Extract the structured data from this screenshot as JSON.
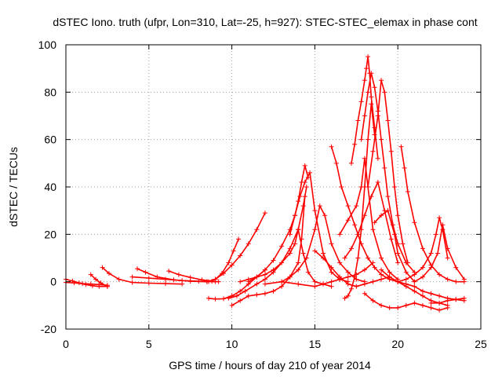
{
  "chart_data": {
    "type": "scatter",
    "title": "dSTEC Iono. truth (ufpr, Lon=310, Lat=-25, h=927): STEC-STEC_elemax in phase cont",
    "xlabel": "GPS time / hours of day 210 of year 2014",
    "ylabel": "dSTEC  / TECUs",
    "xlim": [
      0,
      25
    ],
    "ylim": [
      -20,
      100
    ],
    "xticks": [
      0,
      5,
      10,
      15,
      20,
      25
    ],
    "yticks": [
      -20,
      0,
      20,
      40,
      60,
      80,
      100
    ],
    "grid": true,
    "marker": "+",
    "color": "#ff0000",
    "series": [
      {
        "x": [
          0.0,
          0.4,
          0.8,
          1.2,
          1.6,
          2.0,
          2.5
        ],
        "y": [
          1.0,
          0.3,
          -0.5,
          -1.2,
          -1.7,
          -2.0,
          -2.0
        ]
      },
      {
        "x": [
          0.0,
          0.5,
          1.0,
          1.5,
          2.0,
          2.5
        ],
        "y": [
          -0.3,
          -0.5,
          -0.8,
          -1.0,
          -1.2,
          -1.5
        ]
      },
      {
        "x": [
          1.5,
          1.8,
          2.1,
          2.5
        ],
        "y": [
          3.0,
          1.0,
          -0.5,
          -2.0
        ]
      },
      {
        "x": [
          2.2,
          2.6,
          3.2,
          4.0,
          5.0,
          6.0,
          7.0
        ],
        "y": [
          6.0,
          3.5,
          1.0,
          -0.3,
          -0.6,
          -0.8,
          -1.0
        ]
      },
      {
        "x": [
          4.3,
          4.8,
          5.5,
          6.5,
          7.5,
          8.5
        ],
        "y": [
          5.5,
          4.0,
          2.0,
          0.8,
          0.2,
          0.0
        ]
      },
      {
        "x": [
          4.0,
          5.0,
          6.0,
          7.0,
          8.0,
          9.0
        ],
        "y": [
          2.0,
          1.5,
          1.0,
          0.5,
          0.2,
          0.0
        ]
      },
      {
        "x": [
          6.2,
          6.8,
          7.5,
          8.2,
          8.8,
          9.2
        ],
        "y": [
          4.5,
          3.0,
          1.8,
          0.8,
          0.2,
          0.0
        ]
      },
      {
        "x": [
          8.6,
          9.0,
          9.4,
          9.8,
          10.1,
          10.4
        ],
        "y": [
          0.0,
          1.0,
          3.5,
          8.0,
          13.0,
          18.0
        ]
      },
      {
        "x": [
          8.5,
          9.0,
          9.5,
          10.0,
          10.5,
          11.0,
          11.5,
          12.0
        ],
        "y": [
          0.0,
          1.0,
          3.5,
          7.0,
          11.0,
          16.0,
          22.0,
          29.0
        ]
      },
      {
        "x": [
          8.6,
          9.0,
          9.5,
          10.0,
          10.5,
          11.0,
          11.5,
          12.0
        ],
        "y": [
          -7.0,
          -7.3,
          -7.2,
          -6.0,
          -4.0,
          -1.0,
          2.0,
          5.0
        ]
      },
      {
        "x": [
          9.8,
          10.3,
          10.8,
          11.5,
          12.0,
          12.5,
          13.0,
          13.5,
          14.0,
          14.3,
          14.5
        ],
        "y": [
          -7.0,
          -6.0,
          -4.0,
          -1.0,
          1.0,
          4.0,
          8.0,
          14.0,
          22.0,
          32.0,
          40.0
        ]
      },
      {
        "x": [
          10.0,
          10.5,
          11.0,
          11.5,
          12.0,
          12.5,
          13.0,
          13.5,
          14.0,
          14.2,
          14.4
        ],
        "y": [
          -10.0,
          -8.0,
          -6.0,
          -5.5,
          -5.0,
          -4.0,
          -2.0,
          2.0,
          8.0,
          18.0,
          36.0
        ]
      },
      {
        "x": [
          11.0,
          11.5,
          12.0,
          12.5,
          13.0,
          13.5,
          13.8,
          14.0,
          14.2,
          14.4,
          14.6
        ],
        "y": [
          0.0,
          2.0,
          5.0,
          9.0,
          15.0,
          22.0,
          28.0,
          34.0,
          42.0,
          49.0,
          44.0
        ]
      },
      {
        "x": [
          10.5,
          11.0,
          12.0,
          12.5,
          13.0,
          13.5,
          13.8,
          14.0,
          14.3,
          14.6,
          15.0,
          15.5,
          16.0
        ],
        "y": [
          0.0,
          1.0,
          3.0,
          5.0,
          8.0,
          12.0,
          16.0,
          22.0,
          12.0,
          4.0,
          0.0,
          -1.0,
          -2.0
        ]
      },
      {
        "x": [
          13.5,
          13.8,
          14.1,
          14.4,
          14.7,
          15.0,
          15.5,
          16.0,
          16.5,
          17.0
        ],
        "y": [
          20.0,
          28.0,
          36.0,
          42.0,
          46.0,
          30.0,
          12.0,
          4.0,
          1.0,
          0.0
        ]
      },
      {
        "x": [
          12.0,
          13.0,
          13.5,
          14.0,
          14.5,
          15.0,
          15.3,
          15.6,
          16.0,
          16.5,
          17.0,
          17.5,
          18.0
        ],
        "y": [
          -1.0,
          0.0,
          2.0,
          5.0,
          10.0,
          22.0,
          32.0,
          28.0,
          16.0,
          8.0,
          4.0,
          1.0,
          0.0
        ]
      },
      {
        "x": [
          13.0,
          14.0,
          15.0,
          15.5,
          16.0,
          16.5,
          17.0,
          17.5,
          18.0,
          18.5
        ],
        "y": [
          0.0,
          -1.0,
          -2.0,
          -1.0,
          0.0,
          1.0,
          2.0,
          3.0,
          5.0,
          8.0
        ]
      },
      {
        "x": [
          15.0,
          15.5,
          16.0,
          16.5,
          17.0,
          17.5,
          18.0,
          18.5,
          19.0,
          19.5
        ],
        "y": [
          13.0,
          10.0,
          6.0,
          2.0,
          -1.0,
          -2.0,
          -1.0,
          0.0,
          1.0,
          2.0
        ]
      },
      {
        "x": [
          16.0,
          16.3,
          16.6,
          17.0,
          17.4,
          17.8,
          18.2,
          18.6,
          19.0,
          19.5,
          20.0
        ],
        "y": [
          57.0,
          50.0,
          40.0,
          32.0,
          24.0,
          16.0,
          10.0,
          6.0,
          3.0,
          1.0,
          0.0
        ]
      },
      {
        "x": [
          16.5,
          17.0,
          17.5,
          17.8,
          18.0,
          18.2,
          18.5,
          19.0,
          19.5,
          20.0
        ],
        "y": [
          20.0,
          26.0,
          32.0,
          40.0,
          52.0,
          40.0,
          22.0,
          10.0,
          4.0,
          1.0
        ]
      },
      {
        "x": [
          16.8,
          17.2,
          17.6,
          18.0,
          18.4,
          18.8,
          19.2,
          19.6,
          20.0
        ],
        "y": [
          10.0,
          14.0,
          20.0,
          28.0,
          36.0,
          42.0,
          30.0,
          18.0,
          8.0
        ]
      },
      {
        "x": [
          16.8,
          17.0,
          17.2,
          17.4,
          17.6,
          17.8,
          18.0,
          18.2,
          18.4,
          18.6
        ],
        "y": [
          -7.0,
          -6.0,
          -3.0,
          2.0,
          10.0,
          22.0,
          40.0,
          60.0,
          75.0,
          62.0
        ]
      },
      {
        "x": [
          17.2,
          17.4,
          17.6,
          17.8,
          18.0,
          18.1,
          18.2,
          18.3,
          18.4,
          18.6,
          18.8
        ],
        "y": [
          50.0,
          58.0,
          68.0,
          76.0,
          85.0,
          90.0,
          95.0,
          88.0,
          78.0,
          65.0,
          52.0
        ]
      },
      {
        "x": [
          17.8,
          18.0,
          18.2,
          18.4,
          18.6,
          18.8,
          19.0,
          19.2,
          19.4,
          19.7,
          20.0,
          20.5,
          21.0
        ],
        "y": [
          60.0,
          70.0,
          80.0,
          88.0,
          82.0,
          72.0,
          60.0,
          48.0,
          36.0,
          24.0,
          16.0,
          8.0,
          4.0
        ]
      },
      {
        "x": [
          18.2,
          18.5,
          18.8,
          19.0,
          19.2,
          19.4,
          19.6,
          19.8,
          20.0,
          20.3,
          20.6
        ],
        "y": [
          40.0,
          55.0,
          70.0,
          85.0,
          80.0,
          68.0,
          55.0,
          40.0,
          28.0,
          16.0,
          8.0
        ]
      },
      {
        "x": [
          18.6,
          19.0,
          19.4,
          19.8,
          20.0,
          20.5,
          21.0
        ],
        "y": [
          25.0,
          28.0,
          30.0,
          20.0,
          12.0,
          4.0,
          0.0
        ]
      },
      {
        "x": [
          19.0,
          19.5,
          20.0,
          20.5,
          21.0,
          21.5,
          22.0,
          22.5,
          23.0
        ],
        "y": [
          5.0,
          2.0,
          0.0,
          -2.0,
          -4.0,
          -6.0,
          -8.0,
          -9.0,
          -10.0
        ]
      },
      {
        "x": [
          18.0,
          18.5,
          19.0,
          19.5,
          20.0,
          20.5,
          21.0,
          21.5,
          22.0,
          22.5,
          23.0
        ],
        "y": [
          -5.0,
          -8.0,
          -10.0,
          -11.0,
          -11.0,
          -10.0,
          -9.0,
          -10.0,
          -11.0,
          -12.0,
          -11.0
        ]
      },
      {
        "x": [
          20.2,
          20.4,
          20.6,
          21.0,
          21.5,
          22.0,
          22.5,
          23.0,
          23.5,
          24.0
        ],
        "y": [
          57.0,
          48.0,
          38.0,
          25.0,
          14.0,
          7.0,
          3.0,
          1.0,
          0.0,
          0.0
        ]
      },
      {
        "x": [
          20.0,
          20.5,
          21.0,
          21.5,
          22.0,
          22.5,
          23.0,
          23.5,
          24.0
        ],
        "y": [
          0.0,
          -1.0,
          -2.0,
          -4.0,
          -5.0,
          -6.0,
          -7.0,
          -7.5,
          -8.0
        ]
      },
      {
        "x": [
          20.0,
          20.5,
          21.0,
          21.5,
          22.0,
          22.3,
          22.5,
          22.7,
          23.0
        ],
        "y": [
          0.0,
          1.0,
          3.0,
          6.0,
          12.0,
          20.0,
          27.0,
          22.0,
          10.0
        ]
      },
      {
        "x": [
          21.0,
          21.5,
          22.0,
          22.4,
          22.7,
          23.0,
          23.5,
          24.0
        ],
        "y": [
          0.0,
          2.0,
          6.0,
          12.0,
          24.0,
          14.0,
          6.0,
          1.0
        ]
      },
      {
        "x": [
          22.0,
          22.5,
          23.0,
          23.5,
          24.0
        ],
        "y": [
          -9.0,
          -9.0,
          -8.0,
          -7.5,
          -7.0
        ]
      }
    ]
  }
}
